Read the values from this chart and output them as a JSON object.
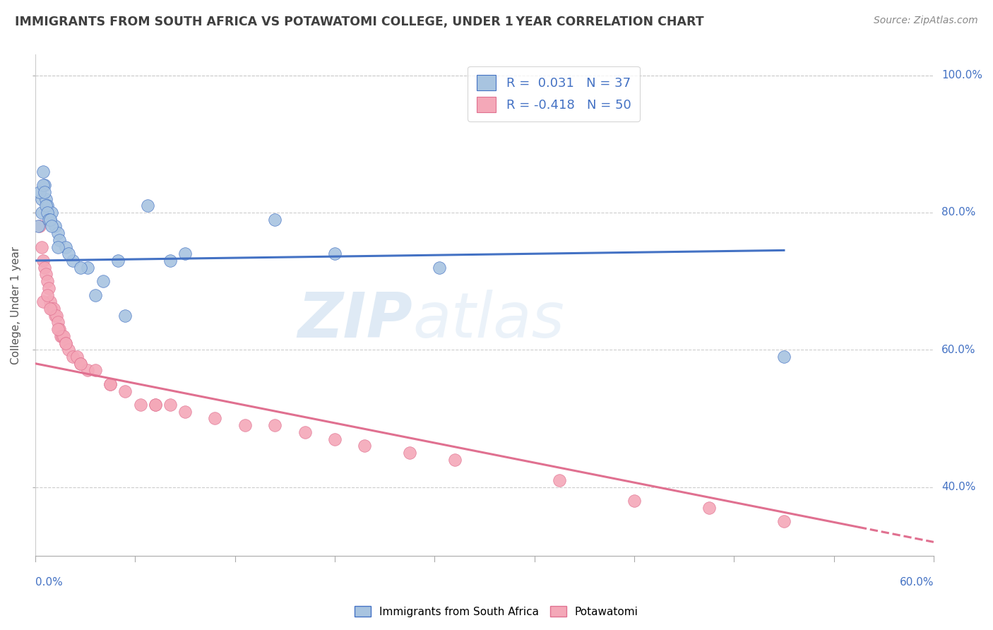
{
  "title": "IMMIGRANTS FROM SOUTH AFRICA VS POTAWATOMI COLLEGE, UNDER 1 YEAR CORRELATION CHART",
  "source": "Source: ZipAtlas.com",
  "xlabel_bottom_left": "0.0%",
  "xlabel_bottom_right": "60.0%",
  "ylabel": "College, Under 1 year",
  "watermark_zip": "ZIP",
  "watermark_atlas": "atlas",
  "xmin": 0.0,
  "xmax": 60.0,
  "ymin": 30.0,
  "ymax": 103.0,
  "yticks": [
    40.0,
    60.0,
    80.0,
    100.0
  ],
  "ytick_labels": [
    "40.0%",
    "60.0%",
    "80.0%",
    "100.0%"
  ],
  "blue_R": 0.031,
  "blue_N": 37,
  "pink_R": -0.418,
  "pink_N": 50,
  "blue_color": "#a8c4e0",
  "pink_color": "#f4a8b8",
  "blue_line_color": "#4472c4",
  "pink_line_color": "#e07090",
  "legend_text_color": "#4472c4",
  "title_color": "#404040",
  "source_color": "#888888",
  "background_color": "#ffffff",
  "grid_color": "#cccccc",
  "blue_x": [
    0.2,
    0.4,
    0.5,
    0.6,
    0.7,
    0.8,
    1.0,
    1.1,
    1.3,
    1.5,
    1.6,
    2.0,
    2.5,
    3.5,
    4.5,
    5.5,
    7.5,
    10.0,
    16.0,
    20.0,
    27.0,
    50.0,
    0.3,
    0.4,
    0.5,
    0.6,
    0.7,
    0.8,
    0.9,
    1.0,
    1.1,
    1.5,
    2.2,
    3.0,
    4.0,
    6.0,
    9.0
  ],
  "blue_y": [
    78,
    82,
    86,
    84,
    82,
    81,
    79,
    80,
    78,
    77,
    76,
    75,
    73,
    72,
    70,
    73,
    81,
    74,
    79,
    74,
    72,
    59,
    83,
    80,
    84,
    83,
    81,
    80,
    79,
    79,
    78,
    75,
    74,
    72,
    68,
    65,
    73
  ],
  "pink_x": [
    0.3,
    0.4,
    0.5,
    0.6,
    0.7,
    0.8,
    0.9,
    1.0,
    1.1,
    1.2,
    1.3,
    1.4,
    1.5,
    1.6,
    1.7,
    1.8,
    1.9,
    2.0,
    2.2,
    2.5,
    2.8,
    3.0,
    3.5,
    4.0,
    5.0,
    6.0,
    7.0,
    8.0,
    9.0,
    10.0,
    12.0,
    14.0,
    16.0,
    18.0,
    20.0,
    22.0,
    25.0,
    28.0,
    35.0,
    40.0,
    45.0,
    50.0,
    0.5,
    0.8,
    1.0,
    1.5,
    2.0,
    3.0,
    5.0,
    8.0
  ],
  "pink_y": [
    78,
    75,
    73,
    72,
    71,
    70,
    69,
    67,
    66,
    66,
    65,
    65,
    64,
    63,
    62,
    62,
    62,
    61,
    60,
    59,
    59,
    58,
    57,
    57,
    55,
    54,
    52,
    52,
    52,
    51,
    50,
    49,
    49,
    48,
    47,
    46,
    45,
    44,
    41,
    38,
    37,
    35,
    67,
    68,
    66,
    63,
    61,
    58,
    55,
    52
  ],
  "blue_trend_x0": 0.0,
  "blue_trend_x1": 50.0,
  "blue_trend_y0": 73.0,
  "blue_trend_y1": 74.5,
  "pink_trend_x0": 0.0,
  "pink_trend_x1": 60.0,
  "pink_trend_y0": 58.0,
  "pink_trend_y1": 32.0,
  "pink_solid_end_x": 55.0,
  "pink_dash_start_x": 55.0
}
